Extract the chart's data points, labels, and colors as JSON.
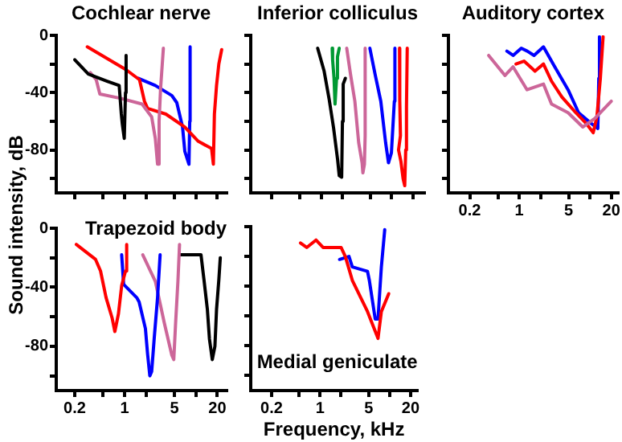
{
  "chart_data": [
    {
      "type": "line",
      "title": "Cochlear nerve",
      "ylabel": "Sound intensity, dB",
      "log": "x",
      "grid": false,
      "legend": false,
      "marker": "none",
      "line_style": "solid",
      "tick_labels": "y",
      "xlim": [
        0.11,
        27
      ],
      "ylim": [
        -110,
        0
      ],
      "xticks": [
        0.2,
        {
          "value": 0.5,
          "label": null
        },
        1,
        {
          "value": 2,
          "label": null
        },
        5,
        {
          "value": 10,
          "label": null
        },
        20
      ],
      "yticks": [
        0,
        {
          "value": -20,
          "label": null
        },
        -40,
        {
          "value": -60,
          "label": null
        },
        -80,
        {
          "value": -100,
          "label": null
        }
      ],
      "series": [
        {
          "color": "#000000",
          "x": [
            0.2,
            0.31,
            0.57,
            0.84,
            0.9,
            0.93,
            0.99,
            1.03,
            1.05
          ],
          "values": [
            -17,
            -27,
            -32,
            -35,
            -55,
            -62,
            -72,
            -40,
            -14
          ]
        },
        {
          "color": "#cc6699",
          "x": [
            0.33,
            0.4,
            0.45,
            0.88,
            1.76,
            2.4,
            2.7,
            2.9,
            3.05,
            3.2,
            3.5
          ],
          "values": [
            -26,
            -31,
            -41,
            -44,
            -48,
            -57,
            -72,
            -90,
            -60,
            -37,
            -9
          ]
        },
        {
          "color": "#ff0000",
          "x": [
            0.3,
            1.05,
            1.62,
            1.9,
            2.1,
            3.8,
            7.0,
            10.8,
            16.6,
            17.6,
            18.2,
            19.5,
            21,
            23
          ],
          "values": [
            -8,
            -24,
            -31,
            -46,
            -51,
            -55,
            -64,
            -74,
            -79,
            -90,
            -55,
            -35,
            -20,
            -10
          ]
        },
        {
          "color": "#0000ff",
          "x": [
            1.55,
            2.7,
            4.6,
            5.4,
            6.5,
            7.0,
            8.0,
            8.2,
            8.3
          ],
          "values": [
            -30,
            -35,
            -42,
            -47,
            -64,
            -81,
            -90,
            -60,
            -8
          ]
        }
      ]
    },
    {
      "type": "line",
      "title": "Inferior colliculus",
      "log": "x",
      "grid": false,
      "legend": false,
      "marker": "none",
      "line_style": "solid",
      "tick_labels": false,
      "xlim": [
        0.1,
        29
      ],
      "ylim": [
        -110,
        0
      ],
      "xticks": [
        0.2,
        {
          "value": 0.5,
          "label": null
        },
        1,
        {
          "value": 2,
          "label": null
        },
        5,
        {
          "value": 10,
          "label": null
        },
        20
      ],
      "yticks": [
        0,
        {
          "value": -20,
          "label": null
        },
        -40,
        {
          "value": -60,
          "label": null
        },
        -80,
        {
          "value": -100,
          "label": null
        }
      ],
      "series": [
        {
          "color": "#000000",
          "x": [
            0.89,
            1.1,
            1.3,
            1.5,
            1.71,
            1.8,
            1.95,
            2.0,
            2.05,
            2.2
          ],
          "values": [
            -9,
            -25,
            -45,
            -65,
            -87,
            -98,
            -99,
            -60,
            -34,
            -30
          ]
        },
        {
          "color": "#009933",
          "x": [
            1.43,
            1.45,
            1.52,
            1.57,
            1.65,
            1.7,
            1.8
          ],
          "values": [
            -9,
            -17,
            -30,
            -48,
            -30,
            -15,
            -9
          ]
        },
        {
          "color": "#cc6699",
          "x": [
            2.3,
            2.6,
            3.0,
            3.4,
            3.8,
            3.9,
            4.1,
            4.2,
            4.2
          ],
          "values": [
            -9,
            -27,
            -46,
            -75,
            -89,
            -96,
            -90,
            -70,
            -9
          ]
        },
        {
          "color": "#0000ff",
          "x": [
            4.9,
            5.8,
            7.0,
            8.2,
            9.0,
            9.9,
            10.9,
            11.1
          ],
          "values": [
            -9,
            -27,
            -46,
            -75,
            -89,
            -82,
            -46,
            -9
          ]
        },
        {
          "color": "#ff0000",
          "x": [
            12.9,
            13,
            13.3,
            12.5,
            13.5,
            14.5,
            15.3,
            15.8,
            16.2,
            16.6
          ],
          "values": [
            -9,
            -45,
            -70,
            -80,
            -88,
            -100,
            -105,
            -80,
            -50,
            -9
          ]
        }
      ]
    },
    {
      "type": "line",
      "title": "Auditory cortex",
      "log": "x",
      "grid": false,
      "legend": false,
      "marker": "none",
      "line_style": "solid",
      "tick_labels": "x",
      "xlim": [
        0.1,
        25
      ],
      "ylim": [
        -110,
        0
      ],
      "xticks": [
        0.2,
        {
          "value": 0.5,
          "label": null
        },
        1,
        {
          "value": 2,
          "label": null
        },
        5,
        {
          "value": 10,
          "label": null
        },
        20
      ],
      "yticks": [
        0,
        {
          "value": -20,
          "label": null
        },
        -40,
        {
          "value": -60,
          "label": null
        },
        -80,
        {
          "value": -100,
          "label": null
        }
      ],
      "series": [
        {
          "color": "#cc6699",
          "x": [
            0.37,
            0.63,
            0.82,
            1.29,
            2.2,
            2.86,
            4.9,
            7.9,
            11.7,
            20
          ],
          "values": [
            -14,
            -28,
            -22,
            -38,
            -34,
            -48,
            -54,
            -64,
            -58,
            -46
          ]
        },
        {
          "color": "#ff0000",
          "x": [
            0.9,
            1.17,
            1.67,
            2.2,
            2.86,
            4.0,
            6.3,
            9.0,
            11.1,
            12.5,
            14,
            15.3
          ],
          "values": [
            -20,
            -18,
            -25,
            -20,
            -32,
            -43,
            -54,
            -62,
            -68,
            -57,
            -30,
            -1
          ]
        },
        {
          "color": "#0000ff",
          "x": [
            0.67,
            0.82,
            1.07,
            1.3,
            1.62,
            2.2,
            3.1,
            4.9,
            6.9,
            10.7,
            12.9,
            13.3,
            13.6
          ],
          "values": [
            -11,
            -14,
            -9,
            -11,
            -14,
            -8,
            -21,
            -38,
            -54,
            -62,
            -65,
            -30,
            -1
          ]
        }
      ]
    },
    {
      "type": "line",
      "title": "Trapezoid body",
      "log": "x",
      "grid": false,
      "legend": false,
      "marker": "none",
      "line_style": "solid",
      "xlim": [
        0.11,
        27
      ],
      "ylim": [
        -110,
        0
      ],
      "xticks": [
        0.2,
        {
          "value": 0.5,
          "label": null
        },
        1,
        {
          "value": 2,
          "label": null
        },
        5,
        {
          "value": 10,
          "label": null
        },
        20
      ],
      "yticks": [
        0,
        {
          "value": -20,
          "label": null
        },
        -40,
        {
          "value": -60,
          "label": null
        },
        -80,
        {
          "value": -100,
          "label": null
        }
      ],
      "series": [
        {
          "color": "#ff0000",
          "x": [
            0.21,
            0.39,
            0.46,
            0.55,
            0.67,
            0.73,
            0.82,
            0.91,
            1.03,
            1.07
          ],
          "values": [
            -11,
            -21,
            -29,
            -47,
            -61,
            -70,
            -58,
            -39,
            -29,
            -11
          ]
        },
        {
          "color": "#0000ff",
          "x": [
            0.91,
            0.97,
            1.48,
            1.6,
            1.96,
            2.1,
            2.26,
            2.4,
            2.6,
            2.9,
            3.15
          ],
          "values": [
            -18,
            -38,
            -47,
            -50,
            -68,
            -85,
            -100,
            -97,
            -75,
            -47,
            -18
          ]
        },
        {
          "color": "#cc6699",
          "x": [
            1.8,
            2.7,
            3.6,
            4.6,
            4.9,
            5.2,
            5.6,
            5.9
          ],
          "values": [
            -18,
            -36,
            -64,
            -86,
            -89,
            -64,
            -36,
            -11
          ]
        },
        {
          "color": "#000000",
          "x": [
            5.9,
            11.8,
            13,
            14.5,
            15.5,
            17,
            18.5,
            19.5,
            21,
            22
          ],
          "values": [
            -18,
            -18,
            -35,
            -55,
            -75,
            -89,
            -80,
            -55,
            -35,
            -20
          ]
        }
      ]
    },
    {
      "type": "line",
      "title": "Medial geniculate",
      "xlabel": "Frequency, kHz",
      "log": "x",
      "grid": false,
      "legend": false,
      "marker": "none",
      "line_style": "solid",
      "tick_labels": "x",
      "xlim": [
        0.1,
        25
      ],
      "ylim": [
        -110,
        0
      ],
      "xticks": [
        0.2,
        {
          "value": 0.5,
          "label": null
        },
        1,
        {
          "value": 2,
          "label": null
        },
        5,
        {
          "value": 10,
          "label": null
        },
        20
      ],
      "yticks": [
        0,
        {
          "value": -20,
          "label": null
        },
        -40,
        {
          "value": -60,
          "label": null
        },
        -80,
        {
          "value": -100,
          "label": null
        }
      ],
      "series": [
        {
          "color": "#ff0000",
          "x": [
            0.52,
            0.64,
            0.87,
            1.1,
            2.0,
            2.3,
            2.9,
            4.8,
            6.8,
            7.6,
            9.7
          ],
          "values": [
            -11,
            -14,
            -9,
            -14,
            -14,
            -20,
            -36,
            -57,
            -75,
            -57,
            -45
          ]
        },
        {
          "color": "#0000ff",
          "x": [
            1.9,
            2.6,
            2.9,
            4.8,
            5.1,
            6.2,
            6.8,
            7.6,
            8.5
          ],
          "values": [
            -22,
            -20,
            -27,
            -30,
            -36,
            -62,
            -62,
            -27,
            -2
          ]
        }
      ]
    }
  ]
}
